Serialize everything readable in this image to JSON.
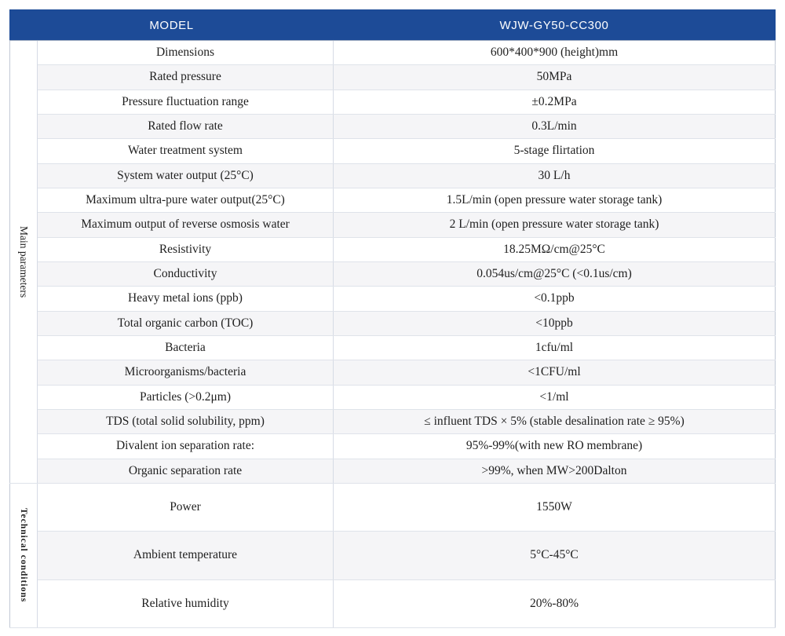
{
  "table": {
    "header": {
      "model_label": "MODEL",
      "model_value": "WJW-GY50-CC300"
    },
    "groups": [
      {
        "label": "Main parameters",
        "rowspan": 18
      },
      {
        "label": "Technical conditions",
        "rowspan": 3
      }
    ],
    "rows": [
      {
        "name": "Dimensions",
        "value": "600*400*900 (height)mm"
      },
      {
        "name": "Rated pressure",
        "value": "50MPa"
      },
      {
        "name": "Pressure fluctuation range",
        "value": "±0.2MPa"
      },
      {
        "name": "Rated flow rate",
        "value": "0.3L/min"
      },
      {
        "name": "Water treatment system",
        "value": "5-stage flirtation"
      },
      {
        "name": "System water output (25°C)",
        "value": "30 L/h"
      },
      {
        "name": "Maximum ultra-pure water output(25°C)",
        "value": "1.5L/min (open pressure water storage tank)"
      },
      {
        "name": "Maximum output of reverse osmosis water",
        "value": "2 L/min (open pressure water storage tank)"
      },
      {
        "name": "Resistivity",
        "value": "18.25MΩ/cm@25°C"
      },
      {
        "name": "Conductivity",
        "value": "0.054us/cm@25°C (<0.1us/cm)"
      },
      {
        "name": "Heavy metal ions (ppb)",
        "value": "<0.1ppb"
      },
      {
        "name": "Total organic carbon (TOC)",
        "value": "<10ppb"
      },
      {
        "name": "Bacteria",
        "value": "1cfu/ml"
      },
      {
        "name": "Microorganisms/bacteria",
        "value": "<1CFU/ml"
      },
      {
        "name": "Particles (>0.2μm)",
        "value": "<1/ml"
      },
      {
        "name": "TDS (total solid solubility, ppm)",
        "value": "≤ influent TDS × 5% (stable desalination rate ≥ 95%)"
      },
      {
        "name": "Divalent ion separation rate:",
        "value": "95%-99%(with new RO membrane)"
      },
      {
        "name": "Organic separation rate",
        "value": ">99%, when MW>200Dalton"
      },
      {
        "name": "Power",
        "value": "1550W"
      },
      {
        "name": "Ambient temperature",
        "value": "5°C-45°C"
      },
      {
        "name": "Relative humidity",
        "value": "20%-80%"
      }
    ]
  },
  "colors": {
    "header_bg": "#1d4b97",
    "stripe_bg": "#f5f5f7",
    "row_border": "#dfe3ea",
    "outer_border": "#c2c9d6",
    "text": "#1f1f1f",
    "header_text": "#ffffff"
  }
}
